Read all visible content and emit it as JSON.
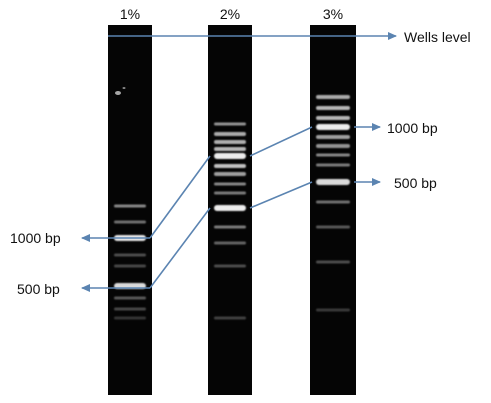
{
  "colors": {
    "gel": "#050505",
    "band": "#f2f2f2",
    "arrow": "#5b84b1",
    "text": "#111111"
  },
  "lanes": [
    {
      "title": "1%",
      "bands": [
        {
          "label": "",
          "opacity": 0.55,
          "strength": "faint"
        },
        {
          "label": "",
          "opacity": 0.45,
          "strength": "faint"
        },
        {
          "label": "1000 bp",
          "opacity": 0.95,
          "strength": "bright"
        },
        {
          "label": "",
          "opacity": 0.3,
          "strength": "faint"
        },
        {
          "label": "",
          "opacity": 0.28,
          "strength": "faint"
        },
        {
          "label": "500 bp",
          "opacity": 0.9,
          "strength": "bright"
        },
        {
          "label": "",
          "opacity": 0.35,
          "strength": "faint"
        },
        {
          "label": "",
          "opacity": 0.28,
          "strength": "faint"
        },
        {
          "label": "",
          "opacity": 0.2,
          "strength": "faint"
        }
      ]
    },
    {
      "title": "2%",
      "bands": [
        {
          "label": "",
          "opacity": 0.6,
          "strength": "faint"
        },
        {
          "label": "",
          "opacity": 0.7,
          "strength": "medium"
        },
        {
          "label": "",
          "opacity": 0.72,
          "strength": "medium"
        },
        {
          "label": "",
          "opacity": 0.75,
          "strength": "medium"
        },
        {
          "label": "1000 bp",
          "opacity": 0.98,
          "strength": "bright"
        },
        {
          "label": "",
          "opacity": 0.8,
          "strength": "medium"
        },
        {
          "label": "",
          "opacity": 0.65,
          "strength": "medium"
        },
        {
          "label": "",
          "opacity": 0.55,
          "strength": "faint"
        },
        {
          "label": "",
          "opacity": 0.5,
          "strength": "faint"
        },
        {
          "label": "500 bp",
          "opacity": 0.98,
          "strength": "bright"
        },
        {
          "label": "",
          "opacity": 0.5,
          "strength": "faint"
        },
        {
          "label": "",
          "opacity": 0.4,
          "strength": "faint"
        },
        {
          "label": "",
          "opacity": 0.3,
          "strength": "faint"
        },
        {
          "label": "",
          "opacity": 0.25,
          "strength": "faint"
        }
      ]
    },
    {
      "title": "3%",
      "bands": [
        {
          "label": "",
          "opacity": 0.7,
          "strength": "medium"
        },
        {
          "label": "",
          "opacity": 0.75,
          "strength": "medium"
        },
        {
          "label": "",
          "opacity": 0.75,
          "strength": "medium"
        },
        {
          "label": "1000 bp",
          "opacity": 0.98,
          "strength": "bright"
        },
        {
          "label": "",
          "opacity": 0.65,
          "strength": "medium"
        },
        {
          "label": "",
          "opacity": 0.6,
          "strength": "medium"
        },
        {
          "label": "",
          "opacity": 0.55,
          "strength": "faint"
        },
        {
          "label": "",
          "opacity": 0.5,
          "strength": "faint"
        },
        {
          "label": "500 bp",
          "opacity": 0.9,
          "strength": "bright"
        },
        {
          "label": "",
          "opacity": 0.45,
          "strength": "faint"
        },
        {
          "label": "",
          "opacity": 0.35,
          "strength": "faint"
        },
        {
          "label": "",
          "opacity": 0.3,
          "strength": "faint"
        },
        {
          "label": "",
          "opacity": 0.22,
          "strength": "faint"
        }
      ]
    }
  ],
  "labels": {
    "wells": "Wells level",
    "left_1000": "1000 bp",
    "left_500": "500 bp",
    "right_1000": "1000 bp",
    "right_500": "500 bp"
  }
}
